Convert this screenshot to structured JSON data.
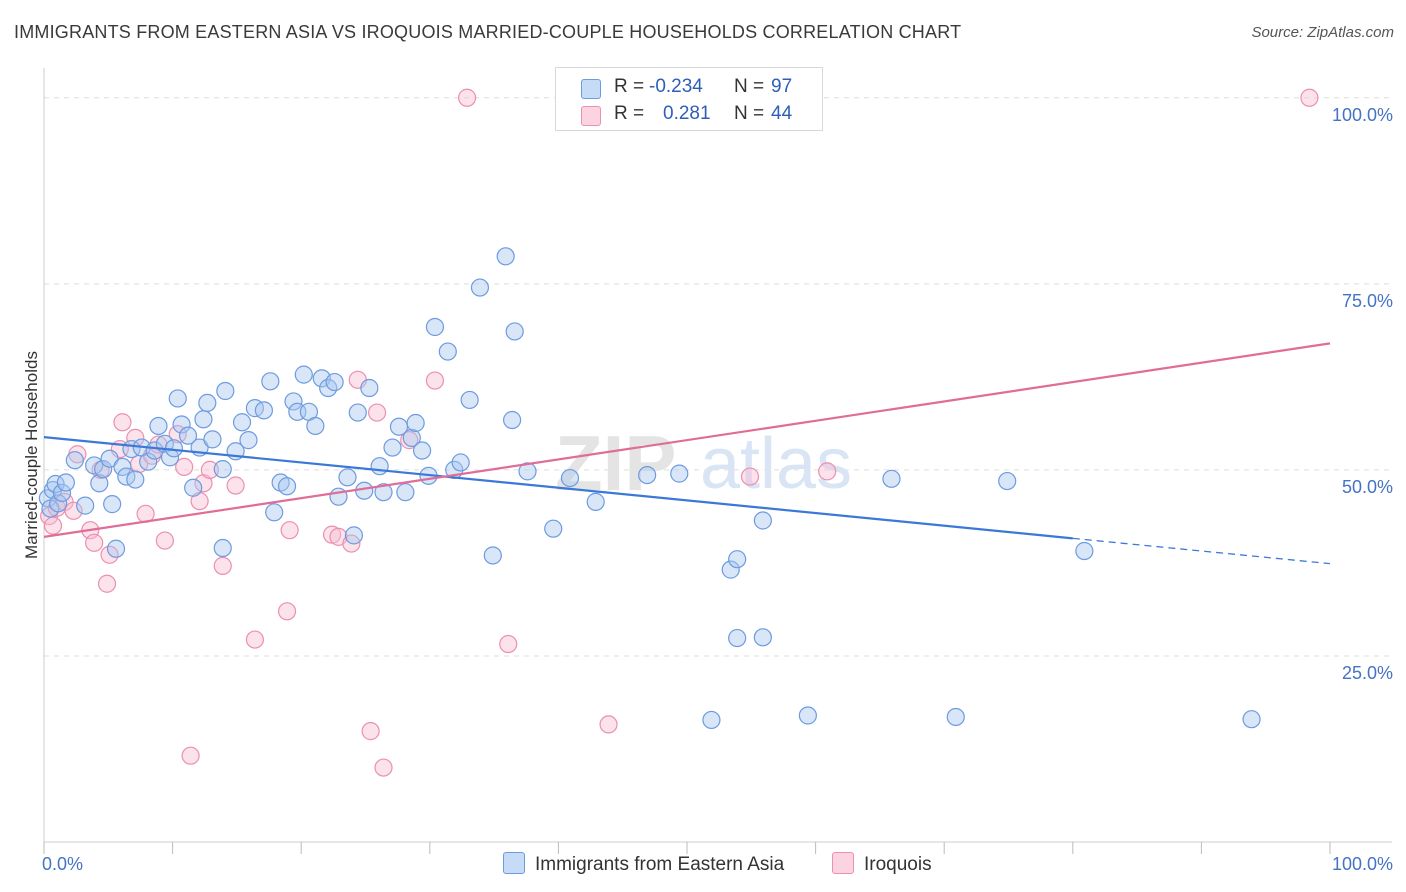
{
  "title": "IMMIGRANTS FROM EASTERN ASIA VS IROQUOIS MARRIED-COUPLE HOUSEHOLDS CORRELATION CHART",
  "source": "Source: ZipAtlas.com",
  "watermark": {
    "zip": "ZIP",
    "atlas": "atlas"
  },
  "legend": {
    "r_label": "R =",
    "n_label": "N =",
    "series": [
      {
        "r": "-0.234",
        "n": "97"
      },
      {
        "r": "0.281",
        "n": "44"
      }
    ]
  },
  "colors": {
    "blue_fill": "#a9c8f0",
    "blue_stroke": "#6d9be0",
    "blue_line": "#3b78d8",
    "pink_fill": "#f7bfd2",
    "pink_stroke": "#ec8fb0",
    "pink_line": "#e06c98",
    "tick_text": "#4472c4",
    "grid": "#dddddd"
  },
  "chart_data": {
    "type": "scatter",
    "title": "IMMIGRANTS FROM EASTERN ASIA VS IROQUOIS MARRIED-COUPLE HOUSEHOLDS CORRELATION CHART",
    "xlabel": "",
    "ylabel": "Married-couple Households",
    "xlim": [
      0,
      100
    ],
    "ylim": [
      0,
      104
    ],
    "x_tick_labels": [
      {
        "value": 0,
        "label": "0.0%"
      },
      {
        "value": 100,
        "label": "100.0%"
      }
    ],
    "y_tick_labels": [
      {
        "value": 25,
        "label": "25.0%"
      },
      {
        "value": 50,
        "label": "50.0%"
      },
      {
        "value": 75,
        "label": "75.0%"
      },
      {
        "value": 100,
        "label": "100.0%"
      }
    ],
    "grid": true,
    "legend_position": "top-center",
    "series": [
      {
        "name": "Immigrants from Eastern Asia",
        "color": "#a9c8f0",
        "trend": {
          "x": [
            0,
            80,
            100
          ],
          "y": [
            54.4,
            40.8,
            37.4
          ],
          "dashed_from": 80
        },
        "points": [
          [
            0.3,
            46.2
          ],
          [
            0.5,
            44.8
          ],
          [
            0.7,
            47.3
          ],
          [
            0.9,
            48.1
          ],
          [
            1.1,
            45.5
          ],
          [
            1.4,
            46.9
          ],
          [
            1.7,
            48.3
          ],
          [
            2.4,
            51.3
          ],
          [
            3.2,
            45.2
          ],
          [
            3.9,
            50.6
          ],
          [
            4.3,
            48.2
          ],
          [
            4.6,
            50.1
          ],
          [
            5.1,
            51.5
          ],
          [
            5.3,
            45.4
          ],
          [
            5.6,
            39.4
          ],
          [
            6.1,
            50.4
          ],
          [
            6.4,
            49.1
          ],
          [
            6.8,
            52.8
          ],
          [
            7.1,
            48.7
          ],
          [
            7.6,
            53.0
          ],
          [
            8.1,
            51.1
          ],
          [
            8.6,
            52.6
          ],
          [
            8.9,
            55.9
          ],
          [
            9.4,
            53.5
          ],
          [
            9.8,
            51.7
          ],
          [
            10.1,
            52.9
          ],
          [
            10.4,
            59.6
          ],
          [
            10.7,
            56.1
          ],
          [
            11.2,
            54.6
          ],
          [
            11.6,
            47.6
          ],
          [
            12.1,
            53.0
          ],
          [
            12.4,
            56.8
          ],
          [
            12.7,
            59.0
          ],
          [
            13.1,
            54.1
          ],
          [
            13.9,
            50.1
          ],
          [
            14.1,
            60.6
          ],
          [
            14.9,
            52.5
          ],
          [
            15.4,
            56.4
          ],
          [
            15.9,
            54.0
          ],
          [
            16.4,
            58.3
          ],
          [
            17.1,
            58.0
          ],
          [
            17.6,
            61.9
          ],
          [
            17.9,
            44.3
          ],
          [
            18.4,
            48.3
          ],
          [
            18.9,
            47.8
          ],
          [
            19.4,
            59.2
          ],
          [
            19.7,
            57.8
          ],
          [
            20.2,
            62.8
          ],
          [
            20.6,
            57.8
          ],
          [
            21.1,
            55.9
          ],
          [
            21.6,
            62.3
          ],
          [
            22.1,
            61.0
          ],
          [
            22.6,
            61.8
          ],
          [
            22.9,
            46.4
          ],
          [
            23.6,
            49.0
          ],
          [
            24.1,
            41.2
          ],
          [
            24.4,
            57.7
          ],
          [
            24.9,
            47.2
          ],
          [
            25.3,
            61.0
          ],
          [
            26.1,
            50.5
          ],
          [
            26.4,
            47.0
          ],
          [
            27.1,
            53.0
          ],
          [
            27.6,
            55.8
          ],
          [
            28.1,
            47.0
          ],
          [
            28.6,
            54.3
          ],
          [
            28.9,
            56.3
          ],
          [
            29.4,
            52.6
          ],
          [
            29.9,
            49.2
          ],
          [
            30.4,
            69.2
          ],
          [
            31.4,
            65.9
          ],
          [
            31.9,
            50.0
          ],
          [
            32.4,
            51.0
          ],
          [
            33.1,
            59.4
          ],
          [
            33.9,
            74.5
          ],
          [
            34.9,
            38.5
          ],
          [
            35.9,
            78.7
          ],
          [
            36.6,
            68.6
          ],
          [
            36.4,
            56.7
          ],
          [
            37.6,
            49.8
          ],
          [
            39.6,
            42.1
          ],
          [
            40.9,
            48.9
          ],
          [
            42.9,
            45.7
          ],
          [
            46.9,
            49.3
          ],
          [
            53.4,
            36.6
          ],
          [
            55.9,
            43.2
          ],
          [
            49.4,
            49.5
          ],
          [
            51.9,
            16.4
          ],
          [
            53.9,
            27.4
          ],
          [
            53.9,
            38.0
          ],
          [
            55.9,
            27.5
          ],
          [
            59.4,
            17.0
          ],
          [
            65.9,
            48.8
          ],
          [
            70.9,
            16.8
          ],
          [
            74.9,
            48.5
          ],
          [
            80.9,
            39.1
          ],
          [
            93.9,
            16.5
          ],
          [
            13.9,
            39.5
          ]
        ]
      },
      {
        "name": "Iroquois",
        "color": "#f7bfd2",
        "trend": {
          "x": [
            0,
            100
          ],
          "y": [
            41.0,
            67.0
          ]
        },
        "points": [
          [
            0.4,
            43.8
          ],
          [
            0.7,
            42.5
          ],
          [
            1.0,
            44.9
          ],
          [
            1.6,
            45.7
          ],
          [
            2.3,
            44.5
          ],
          [
            2.6,
            52.1
          ],
          [
            3.6,
            41.9
          ],
          [
            3.9,
            40.2
          ],
          [
            4.4,
            50.0
          ],
          [
            4.9,
            34.7
          ],
          [
            5.1,
            38.6
          ],
          [
            5.9,
            52.8
          ],
          [
            6.1,
            56.4
          ],
          [
            7.1,
            54.3
          ],
          [
            7.4,
            50.8
          ],
          [
            7.9,
            44.1
          ],
          [
            8.4,
            51.9
          ],
          [
            8.9,
            53.4
          ],
          [
            9.4,
            40.5
          ],
          [
            10.4,
            54.8
          ],
          [
            10.9,
            50.4
          ],
          [
            11.4,
            11.6
          ],
          [
            12.1,
            45.8
          ],
          [
            12.4,
            48.2
          ],
          [
            12.9,
            50.0
          ],
          [
            13.9,
            37.1
          ],
          [
            14.9,
            47.9
          ],
          [
            16.4,
            27.2
          ],
          [
            18.9,
            31.0
          ],
          [
            19.1,
            41.9
          ],
          [
            22.4,
            41.3
          ],
          [
            22.9,
            41.0
          ],
          [
            23.9,
            40.1
          ],
          [
            24.4,
            62.1
          ],
          [
            25.4,
            14.9
          ],
          [
            25.9,
            57.7
          ],
          [
            26.4,
            10.0
          ],
          [
            28.4,
            54.0
          ],
          [
            30.4,
            62.0
          ],
          [
            32.9,
            100.0
          ],
          [
            36.1,
            26.6
          ],
          [
            43.9,
            15.8
          ],
          [
            54.9,
            49.1
          ],
          [
            60.9,
            49.8
          ],
          [
            98.4,
            100.0
          ]
        ]
      }
    ]
  },
  "bottom_legend": {
    "series_a": "Immigrants from Eastern Asia",
    "series_b": "Iroquois"
  }
}
